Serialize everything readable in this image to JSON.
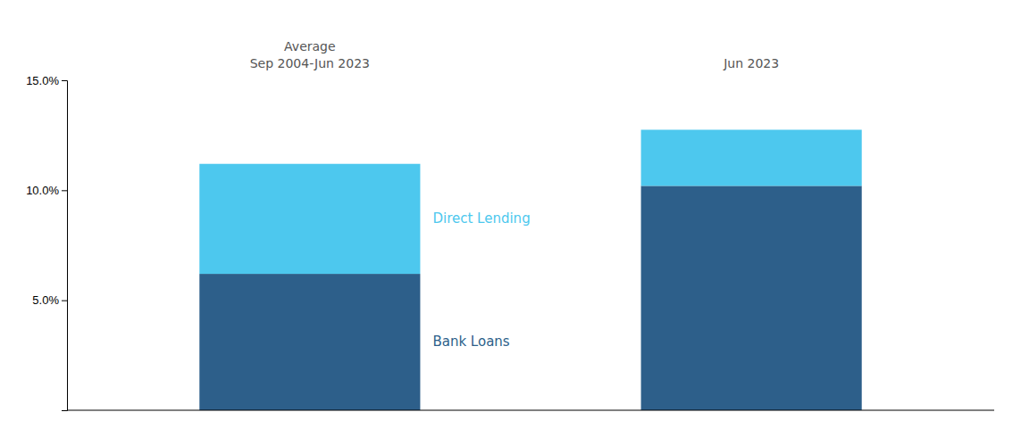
{
  "chart_data": {
    "type": "bar",
    "stacked": true,
    "categories": [
      "Average\nSep 2004-Jun 2023",
      "Jun 2023"
    ],
    "series": [
      {
        "name": "Bank Loans",
        "color": "#2d5f8a",
        "values": [
          6.2,
          10.2
        ]
      },
      {
        "name": "Direct Lending",
        "color": "#4dc8ee",
        "values": [
          5.0,
          2.55
        ]
      }
    ],
    "ylim": [
      0,
      15.0
    ],
    "yticks": [
      {
        "value": 5.0,
        "label": "5.0%"
      },
      {
        "value": 10.0,
        "label": "10.0%"
      },
      {
        "value": 15.0,
        "label": "15.0%"
      }
    ],
    "grid": false
  }
}
